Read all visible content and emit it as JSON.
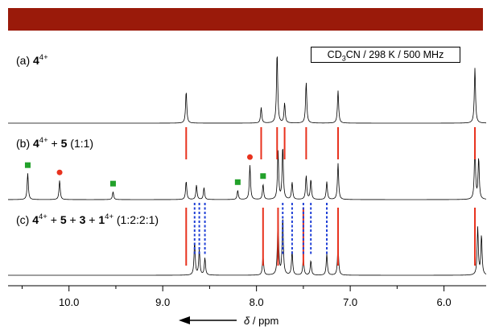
{
  "banner_color": "#9a1a0a",
  "conditions": {
    "pre": "CD",
    "sub": "3",
    "post": "CN / 298 K / 500 MHz"
  },
  "axis": {
    "label_italic": "δ",
    "label_rest": " / ppm",
    "arrow": "left"
  },
  "chart_data": {
    "type": "line",
    "x_unit": "ppm",
    "x_axis_reversed": true,
    "xlim": [
      10.65,
      5.55
    ],
    "x_ticks": [
      "10.0",
      "9.0",
      "8.0",
      "7.0",
      "6.0"
    ],
    "x_tick_values": [
      10.0,
      9.0,
      8.0,
      7.0,
      6.0
    ],
    "grid": false,
    "legend": "none",
    "annotation_colors": {
      "correlation_line": "#e8321e",
      "shift_guide": "#1f3fd6",
      "marker_square": "#22a12a",
      "marker_circle": "#e8321e"
    },
    "spectra": [
      {
        "id": "a",
        "label_prefix": "(a) ",
        "label_parts": [
          {
            "text": "4",
            "bold": true
          },
          {
            "text": "4+",
            "sup": true
          }
        ],
        "peaks": [
          {
            "ppm": 8.75,
            "h": 0.45
          },
          {
            "ppm": 7.95,
            "h": 0.22
          },
          {
            "ppm": 7.78,
            "h": 1.0
          },
          {
            "ppm": 7.7,
            "h": 0.28
          },
          {
            "ppm": 7.47,
            "h": 0.58
          },
          {
            "ppm": 7.13,
            "h": 0.46
          },
          {
            "ppm": 5.67,
            "h": 0.78
          }
        ]
      },
      {
        "id": "b",
        "label_prefix": "(b) ",
        "label_parts": [
          {
            "text": "4",
            "bold": true
          },
          {
            "text": "4+",
            "sup": true
          },
          {
            "text": " + "
          },
          {
            "text": "5",
            "bold": true
          },
          {
            "text": " (1:1)"
          }
        ],
        "peaks": [
          {
            "ppm": 10.44,
            "h": 0.4
          },
          {
            "ppm": 10.1,
            "h": 0.29
          },
          {
            "ppm": 9.53,
            "h": 0.12
          },
          {
            "ppm": 8.75,
            "h": 0.28
          },
          {
            "ppm": 8.64,
            "h": 0.22
          },
          {
            "ppm": 8.56,
            "h": 0.18
          },
          {
            "ppm": 8.2,
            "h": 0.14
          },
          {
            "ppm": 8.07,
            "h": 0.52
          },
          {
            "ppm": 7.93,
            "h": 0.23
          },
          {
            "ppm": 7.77,
            "h": 0.73
          },
          {
            "ppm": 7.72,
            "h": 0.8
          },
          {
            "ppm": 7.62,
            "h": 0.26
          },
          {
            "ppm": 7.47,
            "h": 0.36
          },
          {
            "ppm": 7.42,
            "h": 0.3
          },
          {
            "ppm": 7.25,
            "h": 0.27
          },
          {
            "ppm": 7.13,
            "h": 0.55
          },
          {
            "ppm": 5.67,
            "h": 0.82
          },
          {
            "ppm": 5.63,
            "h": 0.62
          }
        ],
        "square_markers_ppm": [
          10.44,
          9.53,
          8.2,
          7.93
        ],
        "circle_markers_ppm": [
          10.1,
          8.07
        ]
      },
      {
        "id": "c",
        "label_prefix": "(c) ",
        "label_parts": [
          {
            "text": "4",
            "bold": true
          },
          {
            "text": "4+",
            "sup": true
          },
          {
            "text": " + "
          },
          {
            "text": "5",
            "bold": true
          },
          {
            "text": " + "
          },
          {
            "text": "3",
            "bold": true
          },
          {
            "text": " + "
          },
          {
            "text": "1",
            "bold": true
          },
          {
            "text": "4+",
            "sup": true
          },
          {
            "text": " (1:2:2:1)"
          }
        ],
        "peaks": [
          {
            "ppm": 8.66,
            "h": 0.5
          },
          {
            "ppm": 8.61,
            "h": 0.38
          },
          {
            "ppm": 8.55,
            "h": 0.26
          },
          {
            "ppm": 7.93,
            "h": 0.3
          },
          {
            "ppm": 7.77,
            "h": 0.9
          },
          {
            "ppm": 7.72,
            "h": 0.88
          },
          {
            "ppm": 7.62,
            "h": 0.36
          },
          {
            "ppm": 7.5,
            "h": 0.26
          },
          {
            "ppm": 7.42,
            "h": 0.22
          },
          {
            "ppm": 7.25,
            "h": 0.32
          },
          {
            "ppm": 7.13,
            "h": 0.45
          },
          {
            "ppm": 5.64,
            "h": 0.72
          },
          {
            "ppm": 5.6,
            "h": 0.6
          }
        ]
      }
    ],
    "correlation_lines_ab_ppm": [
      8.75,
      7.95,
      7.78,
      7.7,
      7.47,
      7.13,
      5.67
    ],
    "correlation_lines_bc_ppm": [
      8.75,
      7.93,
      7.77,
      7.5,
      7.13,
      5.67
    ],
    "blue_guides_ppm": [
      8.66,
      8.61,
      8.55,
      7.72,
      7.62,
      7.5,
      7.42,
      7.25
    ]
  }
}
